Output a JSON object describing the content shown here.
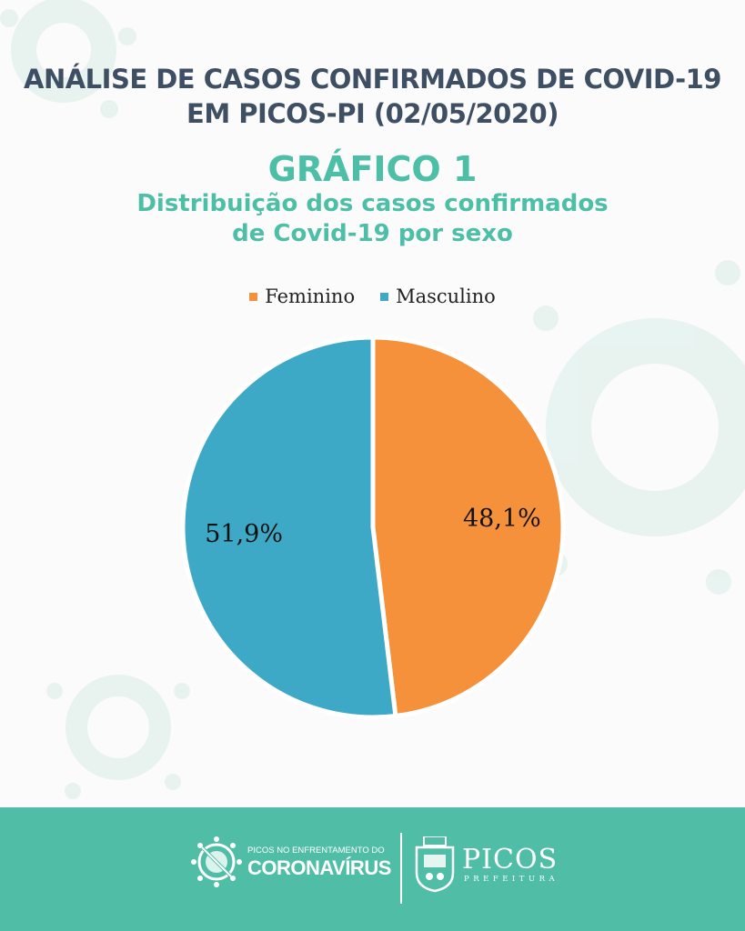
{
  "header": {
    "title_line1": "ANÁLISE DE CASOS CONFIRMADOS DE COVID-19",
    "title_line2": "EM PICOS-PI (02/05/2020)"
  },
  "chart_heading": "GRÁFICO 1",
  "chart_subtitle_line1": "Distribuição dos casos confirmados",
  "chart_subtitle_line2": "de Covid-19 por sexo",
  "chart_data": {
    "type": "pie",
    "categories": [
      "Feminino",
      "Masculino"
    ],
    "values": [
      48.1,
      51.9
    ],
    "labels": [
      "48,1%",
      "51,9%"
    ],
    "colors": [
      "#f4913a",
      "#3ea9c7"
    ],
    "legend_position": "top",
    "start": "12 o'clock, clockwise"
  },
  "colors": {
    "title": "#3f4f63",
    "accent": "#4dbfa6",
    "footer_bg": "#50bea7"
  },
  "footer": {
    "left_icon": "coronavirus-crossed-out-icon",
    "tagline": "PICOS NO ENFRENTAMENTO DO",
    "brand": "CORONAVÍRUS",
    "right_icon": "city-crest-icon",
    "city": "PICOS",
    "org": "PREFEITURA"
  }
}
